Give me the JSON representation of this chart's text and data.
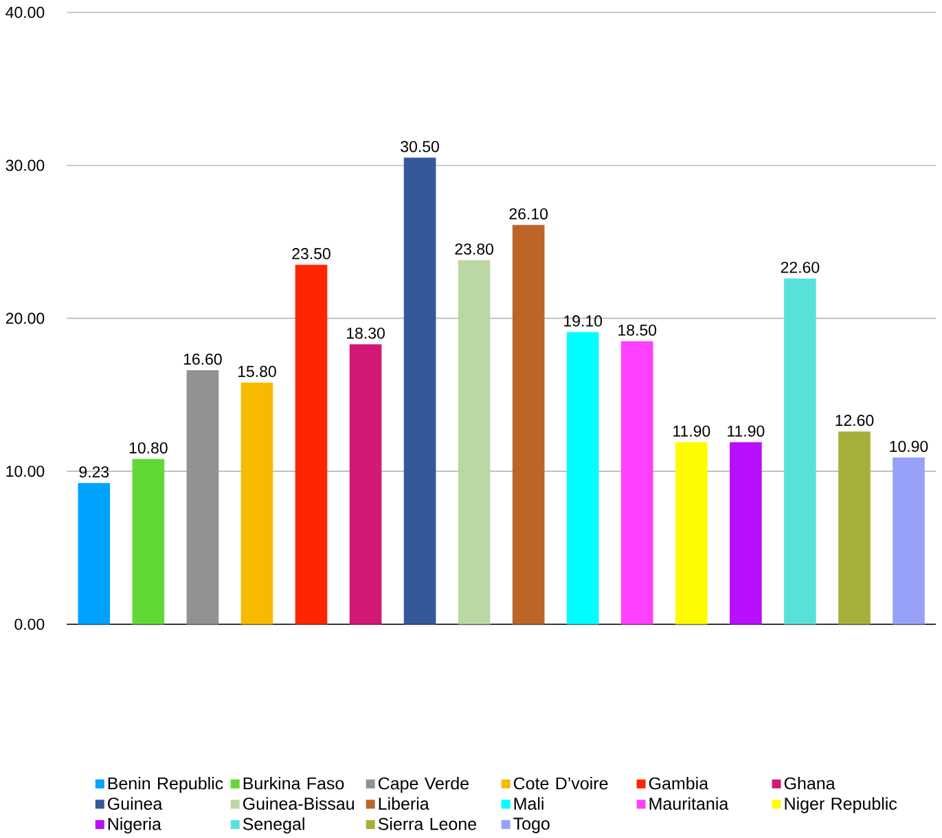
{
  "chart_data": {
    "type": "bar",
    "categories": [
      null
    ],
    "series": [
      {
        "name": "Benin Republic",
        "color": "#00a2ff",
        "values": [
          9.23
        ],
        "value_labels": [
          "9.23"
        ]
      },
      {
        "name": "Burkina Faso",
        "color": "#61d836",
        "values": [
          10.8
        ],
        "value_labels": [
          "10.80"
        ]
      },
      {
        "name": "Cape Verde",
        "color": "#929292",
        "values": [
          16.6
        ],
        "value_labels": [
          "16.60"
        ]
      },
      {
        "name": "Cote D’voire",
        "color": "#f8ba00",
        "values": [
          15.8
        ],
        "value_labels": [
          "15.80"
        ]
      },
      {
        "name": "Gambia",
        "color": "#ff2600",
        "values": [
          23.5
        ],
        "value_labels": [
          "23.50"
        ]
      },
      {
        "name": "Ghana",
        "color": "#d41876",
        "values": [
          18.3
        ],
        "value_labels": [
          "18.30"
        ]
      },
      {
        "name": "Guinea",
        "color": "#35589a",
        "values": [
          30.5
        ],
        "value_labels": [
          "30.50"
        ]
      },
      {
        "name": "Guinea-Bissau",
        "color": "#bad7a4",
        "values": [
          23.8
        ],
        "value_labels": [
          "23.80"
        ]
      },
      {
        "name": "Liberia",
        "color": "#bd6428",
        "values": [
          26.1
        ],
        "value_labels": [
          "26.10"
        ]
      },
      {
        "name": "Mali",
        "color": "#00fdff",
        "values": [
          19.1
        ],
        "value_labels": [
          "19.10"
        ]
      },
      {
        "name": "Mauritania",
        "color": "#ff40ff",
        "values": [
          18.5
        ],
        "value_labels": [
          "18.50"
        ]
      },
      {
        "name": "Niger Republic",
        "color": "#fffb00",
        "values": [
          11.9
        ],
        "value_labels": [
          "11.90"
        ]
      },
      {
        "name": "Nigeria",
        "color": "#b90eff",
        "values": [
          11.9
        ],
        "value_labels": [
          "11.90"
        ]
      },
      {
        "name": "Senegal",
        "color": "#56e2da",
        "values": [
          22.6
        ],
        "value_labels": [
          "22.60"
        ]
      },
      {
        "name": "Sierra Leone",
        "color": "#a6af3a",
        "values": [
          12.6
        ],
        "value_labels": [
          "12.60"
        ]
      },
      {
        "name": "Togo",
        "color": "#97a1f7",
        "values": [
          10.9
        ],
        "value_labels": [
          "10.90"
        ]
      }
    ],
    "ylim": [
      0,
      40
    ],
    "yticks": [
      {
        "value": 0,
        "label": "0.00"
      },
      {
        "value": 10,
        "label": "10.00"
      },
      {
        "value": 20,
        "label": "20.00"
      },
      {
        "value": 30,
        "label": "30.00"
      },
      {
        "value": 40,
        "label": "40.00"
      }
    ],
    "grid": "y",
    "legend": "bottom"
  }
}
